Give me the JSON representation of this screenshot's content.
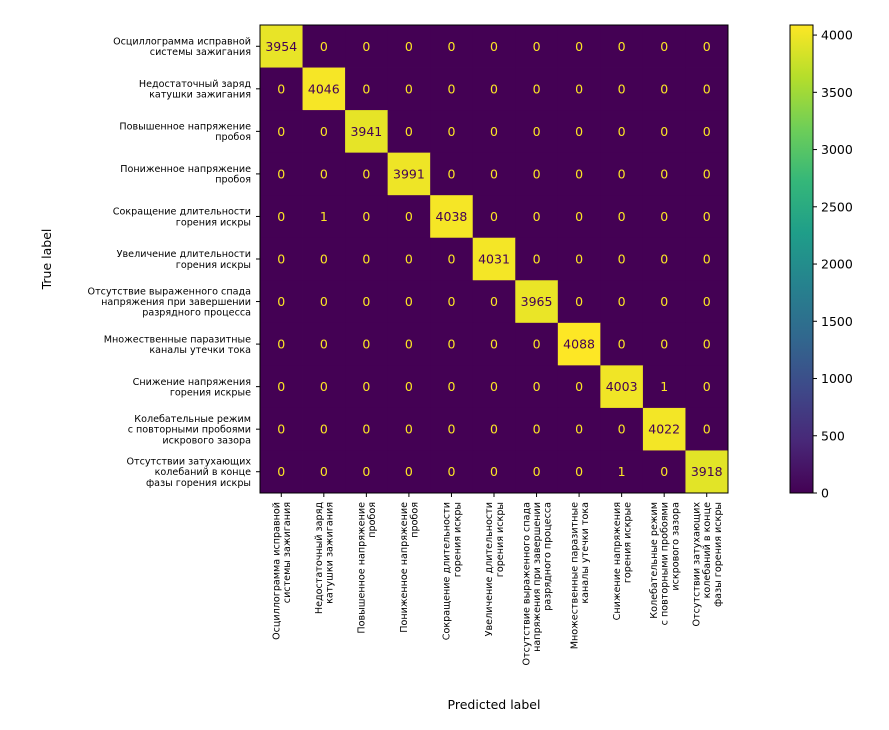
{
  "chart_data": {
    "type": "heatmap",
    "title": "",
    "xlabel": "Predicted label",
    "ylabel": "True label",
    "y_categories": [
      [
        "Осциллограмма исправной",
        "системы зажигания"
      ],
      [
        "Недостаточный заряд",
        "катушки зажигания"
      ],
      [
        "Повышенное напряжение",
        "пробоя"
      ],
      [
        "Пониженное напряжение",
        "пробоя"
      ],
      [
        "Сокращение длительности",
        "горения искры"
      ],
      [
        "Увеличение длительности",
        "горения искры"
      ],
      [
        "Отсутствие выраженного спада",
        "напряжения при завершении",
        "разрядного процесса"
      ],
      [
        "Множественные паразитные",
        "каналы утечки тока"
      ],
      [
        "Снижение напряжения",
        "горения искрые"
      ],
      [
        "Колебательные режим",
        "с повторными пробоями",
        "искрового зазора"
      ],
      [
        "Отсутствии затухающих",
        "колебаний в конце",
        "фазы горения искры"
      ]
    ],
    "x_categories": [
      [
        "Осциллограмма исправной",
        "системы зажигания"
      ],
      [
        "Недостаточный заряд",
        "катушки зажигания"
      ],
      [
        "Повышенное напряжение",
        "пробоя"
      ],
      [
        "Пониженное напряжение",
        "пробоя"
      ],
      [
        "Сокращение длительности",
        "горения искры"
      ],
      [
        "Увеличение длительности",
        "горения искры"
      ],
      [
        "Отсутствие выраженного спада",
        "напряжения при завершении",
        "разрядного процесса"
      ],
      [
        "Множественные паразитные",
        "каналы утечки тока"
      ],
      [
        "Снижение напряжения",
        "горения искрые"
      ],
      [
        "Колебательные режим",
        "с повторными пробоями",
        "искрового зазора"
      ],
      [
        "Отсутствии затухающих",
        "колебаний в конце",
        "фазы горения искры"
      ]
    ],
    "matrix": [
      [
        3954,
        0,
        0,
        0,
        0,
        0,
        0,
        0,
        0,
        0,
        0
      ],
      [
        0,
        4046,
        0,
        0,
        0,
        0,
        0,
        0,
        0,
        0,
        0
      ],
      [
        0,
        0,
        3941,
        0,
        0,
        0,
        0,
        0,
        0,
        0,
        0
      ],
      [
        0,
        0,
        0,
        3991,
        0,
        0,
        0,
        0,
        0,
        0,
        0
      ],
      [
        0,
        1,
        0,
        0,
        4038,
        0,
        0,
        0,
        0,
        0,
        0
      ],
      [
        0,
        0,
        0,
        0,
        0,
        4031,
        0,
        0,
        0,
        0,
        0
      ],
      [
        0,
        0,
        0,
        0,
        0,
        0,
        3965,
        0,
        0,
        0,
        0
      ],
      [
        0,
        0,
        0,
        0,
        0,
        0,
        0,
        4088,
        0,
        0,
        0
      ],
      [
        0,
        0,
        0,
        0,
        0,
        0,
        0,
        0,
        4003,
        1,
        0
      ],
      [
        0,
        0,
        0,
        0,
        0,
        0,
        0,
        0,
        0,
        4022,
        0
      ],
      [
        0,
        0,
        0,
        0,
        0,
        0,
        0,
        0,
        1,
        0,
        3918
      ]
    ],
    "colorbar": {
      "colormap": "viridis",
      "range": [
        0,
        4088
      ],
      "ticks": [
        0,
        500,
        1000,
        1500,
        2000,
        2500,
        3000,
        3500,
        4000
      ]
    }
  },
  "colors": {
    "low": "#440154",
    "high": "#fde725",
    "text_on_low": "#fde725",
    "text_on_high": "#440154"
  }
}
